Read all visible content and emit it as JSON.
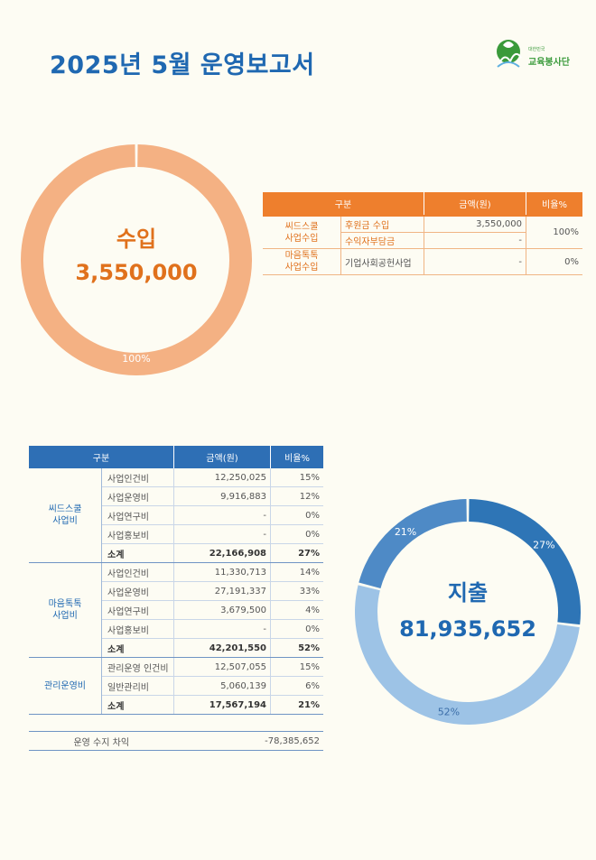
{
  "title": "2025년 5월 운영보고서",
  "logo": {
    "sub": "대한민국",
    "name": "교육봉사단"
  },
  "income_chart": {
    "label": "수입",
    "total": "3,550,000",
    "percent_label": "100%",
    "color": "#f4b183"
  },
  "income_table": {
    "headers": [
      "구분",
      "금액(원)",
      "비율%"
    ],
    "groups": [
      {
        "category": "씨드스쿨\n사업수입",
        "percent": "100%",
        "rows": [
          {
            "item": "후원금 수입",
            "amount": "3,550,000"
          },
          {
            "item": "수익자부담금",
            "amount": "-"
          }
        ]
      },
      {
        "category": "마음톡톡\n사업수입",
        "percent": "0%",
        "rows": [
          {
            "item": "기업사회공헌사업",
            "amount": "-"
          }
        ]
      }
    ]
  },
  "expense_table": {
    "headers": [
      "구분",
      "금액(원)",
      "비율%"
    ],
    "groups": [
      {
        "category": "씨드스쿨\n사업비",
        "rows": [
          {
            "item": "사업인건비",
            "amount": "12,250,025",
            "percent": "15%"
          },
          {
            "item": "사업운영비",
            "amount": "9,916,883",
            "percent": "12%"
          },
          {
            "item": "사업연구비",
            "amount": "-",
            "percent": "0%"
          },
          {
            "item": "사업홍보비",
            "amount": "-",
            "percent": "0%"
          }
        ],
        "subtotal": {
          "item": "소계",
          "amount": "22,166,908",
          "percent": "27%"
        }
      },
      {
        "category": "마음톡톡\n사업비",
        "rows": [
          {
            "item": "사업인건비",
            "amount": "11,330,713",
            "percent": "14%"
          },
          {
            "item": "사업운영비",
            "amount": "27,191,337",
            "percent": "33%"
          },
          {
            "item": "사업연구비",
            "amount": "3,679,500",
            "percent": "4%"
          },
          {
            "item": "사업홍보비",
            "amount": "-",
            "percent": "0%"
          }
        ],
        "subtotal": {
          "item": "소계",
          "amount": "42,201,550",
          "percent": "52%"
        }
      },
      {
        "category": "관리운영비",
        "rows": [
          {
            "item": "관리운영 인건비",
            "amount": "12,507,055",
            "percent": "15%"
          },
          {
            "item": "일반관리비",
            "amount": "5,060,139",
            "percent": "6%"
          }
        ],
        "subtotal": {
          "item": "소계",
          "amount": "17,567,194",
          "percent": "21%"
        }
      }
    ],
    "difference": {
      "label": "운영 수지 차익",
      "amount": "-78,385,652"
    }
  },
  "expense_chart": {
    "label": "지출",
    "total": "81,935,652",
    "slices": [
      {
        "value": 27,
        "label": "27%",
        "color": "#2e75b6"
      },
      {
        "value": 52,
        "label": "52%",
        "color": "#9dc3e6"
      },
      {
        "value": 21,
        "label": "21%",
        "color": "#4e8ac6"
      }
    ]
  }
}
